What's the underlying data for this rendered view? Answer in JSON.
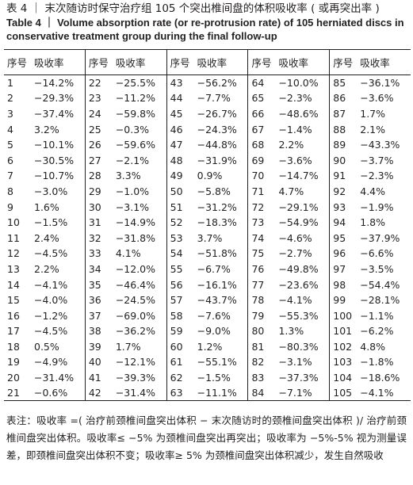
{
  "title_cn": "表 4 ｜ 末次随访时保守治疗组 105 个突出椎间盘的体积吸收率 ( 或再突出率 )",
  "title_en": "Table 4 ｜ Volume absorption rate (or re-protrusion rate) of 105 herniated discs in conservative treatment group during the final follow-up",
  "table": {
    "header": [
      "序号",
      "吸收率",
      "序号",
      "吸收率",
      "序号",
      "吸收率",
      "序号",
      "吸收率",
      "序号",
      "吸收率"
    ],
    "rows": [
      [
        "1",
        "−14.2%",
        "22",
        "−25.5%",
        "43",
        "−56.2%",
        "64",
        "−10.0%",
        "85",
        "−36.1%"
      ],
      [
        "2",
        "−29.3%",
        "23",
        "−11.2%",
        "44",
        "−7.7%",
        "65",
        "−2.3%",
        "86",
        "−3.6%"
      ],
      [
        "3",
        "−37.4%",
        "24",
        "−59.8%",
        "45",
        "−26.7%",
        "66",
        "−48.6%",
        "87",
        "1.7%"
      ],
      [
        "4",
        "3.2%",
        "25",
        "−0.3%",
        "46",
        "−24.3%",
        "67",
        "−1.4%",
        "88",
        "2.1%"
      ],
      [
        "5",
        "−10.1%",
        "26",
        "−59.6%",
        "47",
        "−44.8%",
        "68",
        "2.2%",
        "89",
        "−43.3%"
      ],
      [
        "6",
        "−30.5%",
        "27",
        "−2.1%",
        "48",
        "−31.9%",
        "69",
        "−3.6%",
        "90",
        "−3.7%"
      ],
      [
        "7",
        "−10.7%",
        "28",
        "3.3%",
        "49",
        "0.9%",
        "70",
        "−14.7%",
        "91",
        "−2.3%"
      ],
      [
        "8",
        "−3.0%",
        "29",
        "−1.0%",
        "50",
        "−5.8%",
        "71",
        "4.7%",
        "92",
        "4.4%"
      ],
      [
        "9",
        "1.6%",
        "30",
        "−3.1%",
        "51",
        "−31.2%",
        "72",
        "−29.1%",
        "93",
        "−1.9%"
      ],
      [
        "10",
        "−1.5%",
        "31",
        "−14.9%",
        "52",
        "−18.3%",
        "73",
        "−54.9%",
        "94",
        "1.8%"
      ],
      [
        "11",
        "2.4%",
        "32",
        "−31.8%",
        "53",
        "3.7%",
        "74",
        "−4.6%",
        "95",
        "−37.9%"
      ],
      [
        "12",
        "−4.5%",
        "33",
        "4.1%",
        "54",
        "−51.8%",
        "75",
        "−2.7%",
        "96",
        "−6.6%"
      ],
      [
        "13",
        "2.2%",
        "34",
        "−12.0%",
        "55",
        "−6.7%",
        "76",
        "−49.8%",
        "97",
        "−3.5%"
      ],
      [
        "14",
        "−4.1%",
        "35",
        "−46.4%",
        "56",
        "−16.1%",
        "77",
        "−23.6%",
        "98",
        "−54.4%"
      ],
      [
        "15",
        "−4.0%",
        "36",
        "−24.5%",
        "57",
        "−43.7%",
        "78",
        "−4.1%",
        "99",
        "−28.1%"
      ],
      [
        "16",
        "−1.2%",
        "37",
        "−69.0%",
        "58",
        "−7.6%",
        "79",
        "−55.3%",
        "100",
        "−1.1%"
      ],
      [
        "17",
        "−4.5%",
        "38",
        "−36.2%",
        "59",
        "−9.0%",
        "80",
        "1.3%",
        "101",
        "−6.2%"
      ],
      [
        "18",
        "0.5%",
        "39",
        "1.7%",
        "60",
        "1.2%",
        "81",
        "−80.3%",
        "102",
        "4.8%"
      ],
      [
        "19",
        "−4.9%",
        "40",
        "−12.1%",
        "61",
        "−55.1%",
        "82",
        "−3.1%",
        "103",
        "−1.8%"
      ],
      [
        "20",
        "−31.4%",
        "41",
        "−39.3%",
        "62",
        "−1.5%",
        "83",
        "−37.3%",
        "104",
        "−18.6%"
      ],
      [
        "21",
        "−0.6%",
        "42",
        "−31.4%",
        "63",
        "−11.1%",
        "84",
        "−7.1%",
        "105",
        "−4.1%"
      ]
    ]
  },
  "footnote": "表注：吸收率 =( 治疗前颈椎间盘突出体积 − 末次随访时的颈椎间盘突出体积 )/ 治疗前颈椎间盘突出体积。吸收率≤ −5% 为颈椎间盘突出再突出；吸收率为 −5%-5% 视为测量误差，即颈椎间盘突出体积不变；吸收率≥ 5% 为颈椎间盘突出体积减少，发生自然吸收"
}
